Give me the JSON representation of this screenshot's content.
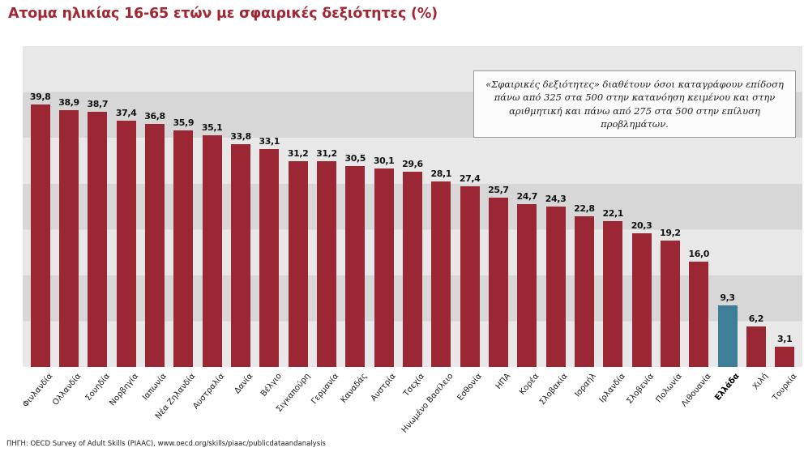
{
  "header": {
    "title": "Ατομα ηλικίας 16-65 ετών με σφαιρικές δεξιότητες (%)"
  },
  "note": {
    "text": "«Σφαιρικές δεξιότητες» διαθέτουν όσοι καταγράφουν επίδοση πάνω από 325 στα 500 στην κατανόηση κειμένου και στην αριθμητική και πάνω από 275 στα 500 στην επίλυση προβλημάτων."
  },
  "footer": {
    "source": "ΠΗΓΗ: OECD Survey of Adult Skills (PIAAC), www.oecd.org/skills/piaac/publicdataandanalysis"
  },
  "colors": {
    "title": "#a32733",
    "bar": "#9a2733",
    "highlight_bar": "#3f7e99",
    "band_light": "#e8e8e8",
    "band_dark": "#d7d7d7"
  },
  "chart_data": {
    "type": "bar",
    "title": "Ατομα ηλικίας 16-65 ετών με σφαιρικές δεξιότητες (%)",
    "categories": [
      "Φινλανδία",
      "Ολλανδία",
      "Σουηδία",
      "Νορβηγία",
      "Ιαπωνία",
      "Νέα Ζηλανδία",
      "Αυστραλία",
      "Δανία",
      "Βέλγιο",
      "Σιγκαπούρη",
      "Γερμανία",
      "Καναδάς",
      "Αυστρία",
      "Τσεχία",
      "Ηνωμένο Βασίλειο",
      "Εσθονία",
      "ΗΠΑ",
      "Κορέα",
      "Σλοβακία",
      "Ισραήλ",
      "Ιρλανδία",
      "Σλοβενία",
      "Πολωνία",
      "Λιθουανία",
      "Ελλάδα",
      "Χιλή",
      "Τουρκία"
    ],
    "values": [
      39.8,
      38.9,
      38.7,
      37.4,
      36.8,
      35.9,
      35.1,
      33.8,
      33.1,
      31.2,
      31.2,
      30.5,
      30.1,
      29.6,
      28.1,
      27.4,
      25.7,
      24.7,
      24.3,
      22.8,
      22.1,
      20.3,
      19.2,
      16.0,
      9.3,
      6.2,
      3.1
    ],
    "highlight_category": "Ελλάδα",
    "value_decimal_separator": ",",
    "xlabel": "",
    "ylabel": "",
    "ylim": [
      0,
      40
    ],
    "grid": "horizontal-bands",
    "legend": "none"
  }
}
